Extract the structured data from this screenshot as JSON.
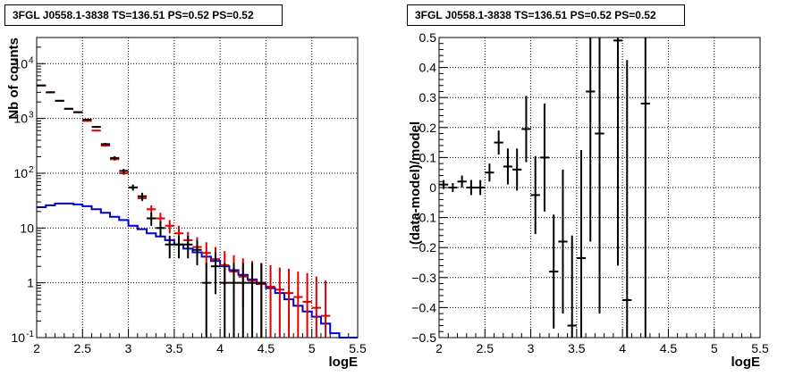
{
  "chart_data": [
    {
      "type": "step-histogram",
      "title": "3FGL J0558.1-3838 TS=136.51 PS=0.52 PS=0.52",
      "xlabel": "logE",
      "ylabel": "Nb of counts",
      "xlim": [
        2,
        5.5
      ],
      "ylim": [
        0.1,
        30000
      ],
      "yscale": "log",
      "grid": true,
      "x_ticks": [
        "2",
        "2.5",
        "3",
        "3.5",
        "4",
        "4.5",
        "5",
        "5.5"
      ],
      "y_ticks": [
        {
          "value": 0.1,
          "label": "10",
          "exp": "-1"
        },
        {
          "value": 1,
          "label": "1",
          "exp": ""
        },
        {
          "value": 10,
          "label": "10",
          "exp": ""
        },
        {
          "value": 100,
          "label": "10",
          "exp": "2"
        },
        {
          "value": 1000,
          "label": "10",
          "exp": "3"
        },
        {
          "value": 10000,
          "label": "10",
          "exp": "4"
        }
      ],
      "bin_edges": [
        2.0,
        2.1,
        2.2,
        2.3,
        2.4,
        2.5,
        2.6,
        2.7,
        2.8,
        2.9,
        3.0,
        3.1,
        3.2,
        3.3,
        3.4,
        3.5,
        3.6,
        3.7,
        3.8,
        3.9,
        4.0,
        4.1,
        4.2,
        4.3,
        4.4,
        4.5,
        4.6,
        4.7,
        4.8,
        4.9,
        5.0,
        5.1,
        5.2,
        5.3,
        5.4,
        5.5
      ],
      "series": [
        {
          "kind": "step",
          "color": "#0000cc",
          "values": [
            24,
            26,
            28,
            28,
            27,
            25,
            22,
            19,
            16,
            14,
            11,
            9.5,
            8,
            7,
            6,
            5,
            4.2,
            3.6,
            3.0,
            2.5,
            2.0,
            1.7,
            1.4,
            1.15,
            0.95,
            0.8,
            0.65,
            0.5,
            0.38,
            0.3,
            0.24,
            0.18,
            0.12,
            0.1,
            0.1
          ]
        },
        {
          "kind": "points",
          "color": "#dd0000",
          "x": [
            2.05,
            2.15,
            2.25,
            2.35,
            2.45,
            2.55,
            2.65,
            2.75,
            2.85,
            2.95,
            3.05,
            3.15,
            3.25,
            3.35,
            3.45,
            3.55,
            3.65,
            3.75,
            3.85,
            3.95,
            4.05,
            4.15,
            4.25,
            4.35,
            4.45,
            4.55,
            4.65,
            4.75,
            4.85,
            4.95,
            5.05,
            5.15
          ],
          "y": [
            4000,
            3000,
            2100,
            1500,
            1300,
            900,
            600,
            320,
            180,
            100,
            55,
            35,
            22,
            15,
            11,
            8,
            6,
            4.5,
            3.5,
            2.7,
            2.1,
            1.6,
            1.3,
            1.1,
            0.95,
            0.85,
            0.75,
            0.65,
            0.55,
            0.45,
            0.35,
            0.25
          ],
          "y_lo": [
            3900,
            2900,
            2050,
            1450,
            1250,
            870,
            580,
            305,
            170,
            93,
            50,
            31,
            18,
            12,
            8,
            6,
            4.2,
            3,
            2,
            1.4,
            0.9,
            0.6,
            0.35,
            0.15,
            0.1,
            0.1,
            0.1,
            0.1,
            0.1,
            0.1,
            0.1,
            0.1
          ],
          "y_hi": [
            4100,
            3100,
            2150,
            1550,
            1350,
            930,
            620,
            335,
            190,
            107,
            60,
            39,
            26,
            19,
            14,
            11,
            8.5,
            6.8,
            5.5,
            4.5,
            3.8,
            3.2,
            2.8,
            2.5,
            2.3,
            2.1,
            1.9,
            1.8,
            1.6,
            1.5,
            1.3,
            1.1
          ]
        },
        {
          "kind": "points",
          "color": "#000000",
          "x": [
            2.05,
            2.15,
            2.25,
            2.35,
            2.45,
            2.55,
            2.65,
            2.75,
            2.85,
            2.95,
            3.05,
            3.15,
            3.25,
            3.35,
            3.45,
            3.55,
            3.65,
            3.75,
            3.85,
            3.95,
            4.05,
            4.15,
            4.25,
            4.35,
            4.45
          ],
          "y": [
            4000,
            3000,
            2100,
            1500,
            1300,
            950,
            700,
            340,
            190,
            110,
            55,
            38,
            15,
            10,
            5,
            5,
            5,
            4,
            1,
            2,
            1,
            1,
            1,
            1,
            1
          ],
          "y_lo": [
            3940,
            2950,
            2050,
            1460,
            1260,
            920,
            675,
            322,
            176,
            100,
            48,
            32,
            11,
            6.8,
            2.8,
            2.8,
            2.8,
            2.1,
            0.1,
            0.62,
            0.1,
            0.1,
            0.1,
            0.1,
            0.1
          ],
          "y_hi": [
            4060,
            3050,
            2150,
            1540,
            1340,
            980,
            725,
            358,
            204,
            120,
            62,
            44,
            19,
            13.2,
            7.2,
            7.2,
            7.2,
            6,
            2.3,
            3.6,
            2.3,
            2.3,
            2.3,
            2.3,
            2.3
          ]
        }
      ]
    },
    {
      "type": "errorbar",
      "title": "3FGL J0558.1-3838 TS=136.51 PS=0.52 PS=0.52",
      "xlabel": "logE",
      "ylabel": "(data-model)/model",
      "xlim": [
        2,
        5.5
      ],
      "ylim": [
        -0.5,
        0.5
      ],
      "grid": true,
      "x_ticks": [
        "2",
        "2.5",
        "3",
        "3.5",
        "4",
        "4.5",
        "5",
        "5.5"
      ],
      "y_ticks": [
        "0.5",
        "0.4",
        "0.3",
        "0.2",
        "0.1",
        "0",
        "−0.1",
        "−0.2",
        "−0.3",
        "−0.4",
        "−0.5"
      ],
      "points": {
        "x": [
          2.05,
          2.15,
          2.25,
          2.35,
          2.45,
          2.55,
          2.65,
          2.75,
          2.85,
          2.95,
          3.05,
          3.15,
          3.25,
          3.35,
          3.45,
          3.55,
          3.65,
          3.75,
          3.95,
          4.05,
          4.25
        ],
        "y": [
          0.01,
          0.0,
          0.02,
          0.0,
          0.0,
          0.05,
          0.15,
          0.07,
          0.06,
          0.195,
          -0.025,
          0.1,
          -0.28,
          -0.18,
          -0.46,
          -0.235,
          0.32,
          0.18,
          0.49,
          -0.375,
          0.28
        ],
        "y_err": [
          0.015,
          0.015,
          0.02,
          0.025,
          0.025,
          0.03,
          0.04,
          0.06,
          0.07,
          0.11,
          0.13,
          0.18,
          0.19,
          0.24,
          0.3,
          0.36,
          0.5,
          0.6,
          0.75,
          0.8,
          1.0
        ]
      }
    }
  ]
}
